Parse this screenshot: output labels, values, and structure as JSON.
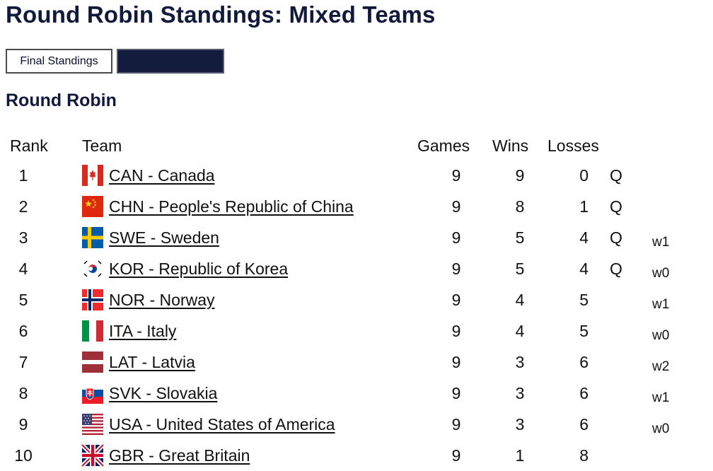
{
  "page": {
    "title": "Round Robin Standings: Mixed Teams",
    "section_title": "Round Robin"
  },
  "buttons": {
    "final_standings": "Final Standings",
    "second": ""
  },
  "table": {
    "headers": {
      "rank": "Rank",
      "team": "Team",
      "games": "Games",
      "wins": "Wins",
      "losses": "Losses"
    },
    "rows": [
      {
        "rank": "1",
        "team": "CAN - Canada",
        "flag": "canada-flag-icon",
        "games": "9",
        "wins": "9",
        "losses": "0",
        "qualifier": "Q",
        "tiebreak": ""
      },
      {
        "rank": "2",
        "team": "CHN - People's Republic of China",
        "flag": "china-flag-icon",
        "games": "9",
        "wins": "8",
        "losses": "1",
        "qualifier": "Q",
        "tiebreak": ""
      },
      {
        "rank": "3",
        "team": "SWE - Sweden",
        "flag": "sweden-flag-icon",
        "games": "9",
        "wins": "5",
        "losses": "4",
        "qualifier": "Q",
        "tiebreak": "w1"
      },
      {
        "rank": "4",
        "team": "KOR - Republic of Korea",
        "flag": "korea-flag-icon",
        "games": "9",
        "wins": "5",
        "losses": "4",
        "qualifier": "Q",
        "tiebreak": "w0"
      },
      {
        "rank": "5",
        "team": "NOR - Norway",
        "flag": "norway-flag-icon",
        "games": "9",
        "wins": "4",
        "losses": "5",
        "qualifier": "",
        "tiebreak": "w1"
      },
      {
        "rank": "6",
        "team": "ITA - Italy",
        "flag": "italy-flag-icon",
        "games": "9",
        "wins": "4",
        "losses": "5",
        "qualifier": "",
        "tiebreak": "w0"
      },
      {
        "rank": "7",
        "team": "LAT - Latvia",
        "flag": "latvia-flag-icon",
        "games": "9",
        "wins": "3",
        "losses": "6",
        "qualifier": "",
        "tiebreak": "w2"
      },
      {
        "rank": "8",
        "team": "SVK - Slovakia",
        "flag": "slovakia-flag-icon",
        "games": "9",
        "wins": "3",
        "losses": "6",
        "qualifier": "",
        "tiebreak": "w1"
      },
      {
        "rank": "9",
        "team": "USA - United States of America",
        "flag": "usa-flag-icon",
        "games": "9",
        "wins": "3",
        "losses": "6",
        "qualifier": "",
        "tiebreak": "w0"
      },
      {
        "rank": "10",
        "team": "GBR - Great Britain",
        "flag": "great-britain-flag-icon",
        "games": "9",
        "wins": "1",
        "losses": "8",
        "qualifier": "",
        "tiebreak": ""
      }
    ]
  },
  "colors": {
    "heading": "#121a3c",
    "dark_button": "#131c3d"
  }
}
